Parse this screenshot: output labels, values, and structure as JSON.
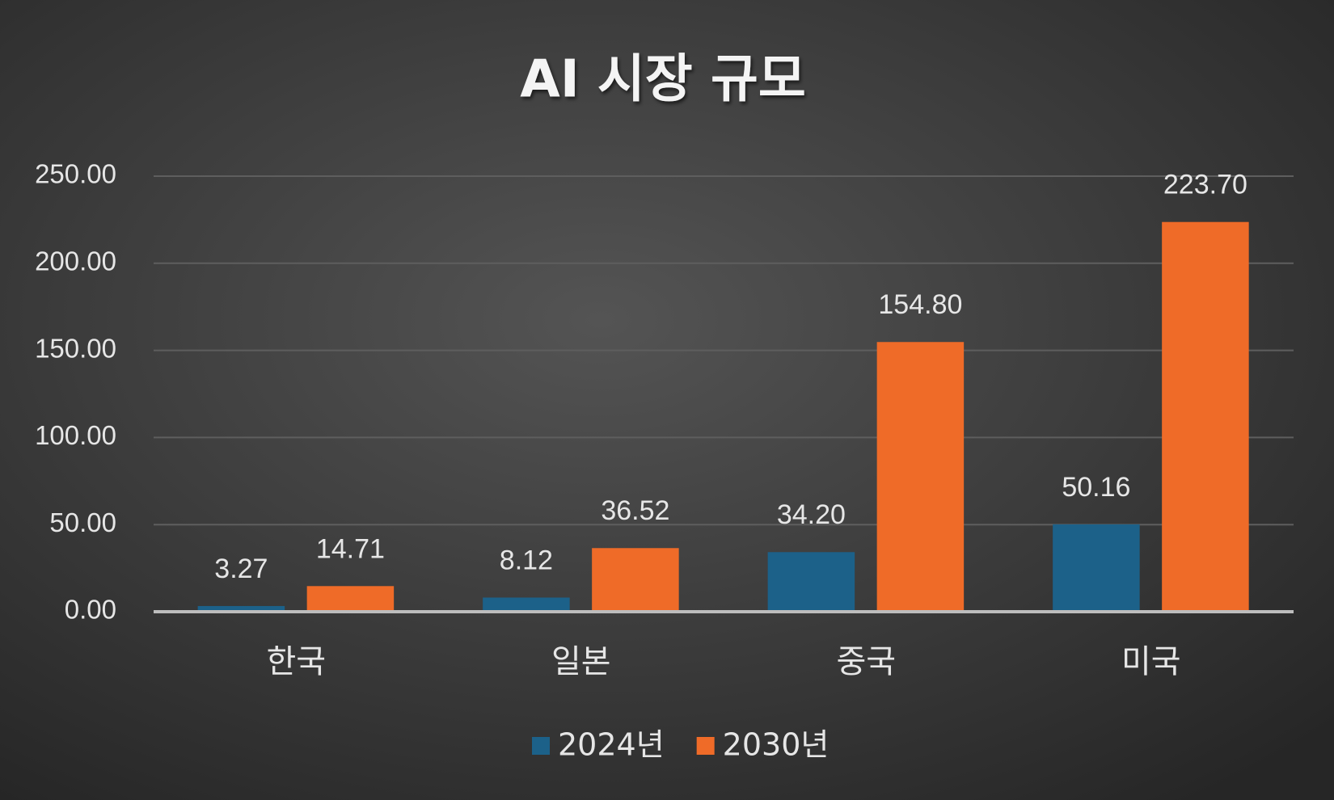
{
  "chart_data": {
    "type": "bar",
    "title": "AI 시장 규모",
    "categories": [
      "한국",
      "일본",
      "중국",
      "미국"
    ],
    "series": [
      {
        "name": "2024년",
        "color": "#1c6189",
        "values": [
          3.27,
          8.12,
          34.2,
          50.16
        ],
        "value_labels": [
          "3.27",
          "8.12",
          "34.20",
          "50.16"
        ]
      },
      {
        "name": "2030년",
        "color": "#ef6b28",
        "values": [
          14.71,
          36.52,
          154.8,
          223.7
        ],
        "value_labels": [
          "14.71",
          "36.52",
          "154.80",
          "223.70"
        ]
      }
    ],
    "ylim": [
      0,
      250
    ],
    "yticks": [
      {
        "value": 0,
        "label": "0.00"
      },
      {
        "value": 50,
        "label": "50.00"
      },
      {
        "value": 100,
        "label": "100.00"
      },
      {
        "value": 150,
        "label": "150.00"
      },
      {
        "value": 200,
        "label": "200.00"
      },
      {
        "value": 250,
        "label": "250.00"
      }
    ],
    "grid": true,
    "legend": "bottom"
  }
}
